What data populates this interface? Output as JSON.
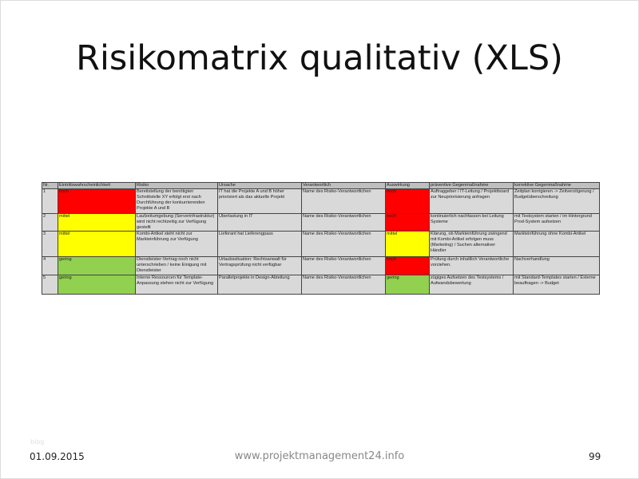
{
  "title": "Risikomatrix qualitativ (XLS)",
  "table": {
    "headers": [
      "Nr.",
      "Eintrittswahrscheinlichkeit",
      "Risiko",
      "Ursache",
      "Verantwortlich",
      "Auswirkung",
      "präventive Gegenmaßnahme",
      "korrektive Gegenmaßnahme"
    ],
    "rows": [
      {
        "nr": "1",
        "prob": "hoch",
        "risk": "Bereitstellung der benötigten Schnittstelle XY erfolgt erst nach Durchführung der konkurrierenden Projekte A und B",
        "cause": "IT hat die Projekte A und B höher priorisiert als das aktuelle Projekt",
        "owner": "Name des Risiko-Verantwortlichen",
        "impact": "hoch",
        "prev": "Auftraggeber / IT-Leitung / Projektboard zur Neupriorisierung anfragen",
        "corr": "Zeitplan korrigieren -> Zeitverzögerung / Budgetüberschreitung"
      },
      {
        "nr": "2",
        "prob": "mittel",
        "risk": "Laufzeitumgebung (Serverinfrastruktur) wird nicht rechtzeitig zur Verfügung gestellt",
        "cause": "Überlastung in IT",
        "owner": "Name des Risiko-Verantwortlichen",
        "impact": "hoch",
        "prev": "kontinuierlich nachfassen bei Leitung Systeme",
        "corr": "mit Testsystem starten / im Hintergrund Prod-System aufsetzen"
      },
      {
        "nr": "3",
        "prob": "mittel",
        "risk": "Kombi-Artikel steht nicht zur Markteinführung zur Verfügung",
        "cause": "Lieferant hat Lieferengpass",
        "owner": "Name des Risiko-Verantwortlichen",
        "impact": "mittel",
        "prev": "Klärung, ob Markteinführung zwingend mit Kombi-Artikel erfolgen muss (Marketing) / Suchen alternativer Händler",
        "corr": "Markteinführung ohne Kombi-Artikel"
      },
      {
        "nr": "4",
        "prob": "gering",
        "risk": "Dienstleister-Vertrag noch nicht unterschrieben / keine Einigung mit Dienstleister",
        "cause": "Urlaubssituation: Rechtsanwalt für Vertragsprüfung nicht verfügbar",
        "owner": "Name des Risiko-Verantwortlichen",
        "impact": "hoch",
        "prev": "Prüfung durch inhaltlich Verantwortliche vorziehen.",
        "corr": "Nachverhandlung"
      },
      {
        "nr": "5",
        "prob": "gering",
        "risk": "Interne Ressourcen für Template-Anpassung stehen nicht zur Verfügung",
        "cause": "Parallelprojekte in Design-Abteilung",
        "owner": "Name des Risiko-Verantwortlichen",
        "impact": "gering",
        "prev": "zügiges Aufsetzen des Testsystems / Aufwandsbewertung",
        "corr": "mit Standard-Templates starten / Externe beauftragen -> Budget"
      }
    ]
  },
  "colors": {
    "hoch": "#ff0000",
    "mittel": "#ffff00",
    "gering": "#92d050"
  },
  "footer": {
    "faint": "blog",
    "date": "01.09.2015",
    "url": "www.projektmanagement24.info",
    "page": "99"
  }
}
